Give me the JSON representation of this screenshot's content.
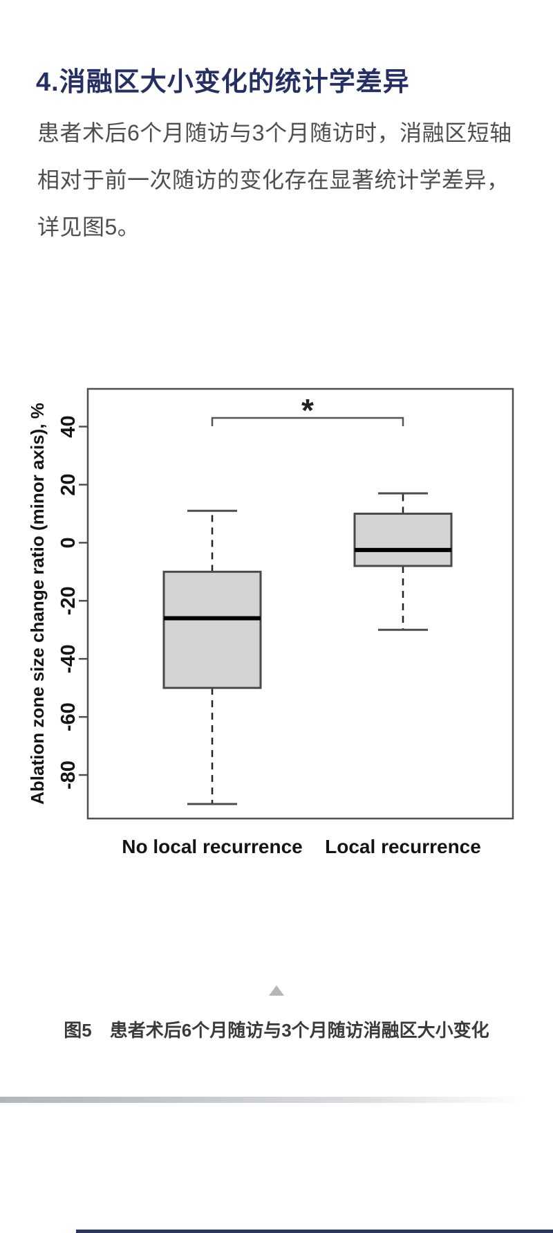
{
  "heading": {
    "text": "4.消融区大小变化的统计学差异",
    "color": "#262f63"
  },
  "paragraph": {
    "lines": [
      "患者术后6个月随访与3个月随访时，消融区短轴",
      "相对于前一次随访的变化存在显著统计学差异，",
      "详见图5。"
    ]
  },
  "chart_data": {
    "type": "boxplot",
    "title": "",
    "xlabel": "",
    "ylabel": "Ablation zone size change ratio (minor axis), %",
    "ylim": [
      -95,
      53
    ],
    "yticks": [
      40,
      20,
      0,
      -20,
      -40,
      -60,
      -80
    ],
    "grid": false,
    "categories": [
      "No local recurrence",
      "Local recurrence"
    ],
    "series": [
      {
        "name": "No local recurrence",
        "whisker_low": -90,
        "q1": -50,
        "median": -26,
        "q3": -10,
        "whisker_high": 11
      },
      {
        "name": "Local recurrence",
        "whisker_low": -30,
        "q1": -8,
        "median": -2.5,
        "q3": 10,
        "whisker_high": 17
      }
    ],
    "significance": {
      "symbol": "*",
      "between": [
        "No local recurrence",
        "Local recurrence"
      ],
      "bracket_y": 43
    },
    "box_fill": "#d3d3d3",
    "box_stroke": "#4a4a4a",
    "median_color": "#000000",
    "axis_color": "#4f4f4f",
    "label_color": "#141414"
  },
  "figure_caption": {
    "label": "图5",
    "text": "患者术后6个月随访与3个月随访消融区大小变化"
  },
  "icons": {
    "scroll_up": "up-triangle"
  },
  "colors": {
    "heading": "#262f63",
    "body_text": "#4e4e4e",
    "caption_text": "#3a3a3a",
    "triangle": "#b6b6b6",
    "bottom_rule": "#2c3766"
  }
}
